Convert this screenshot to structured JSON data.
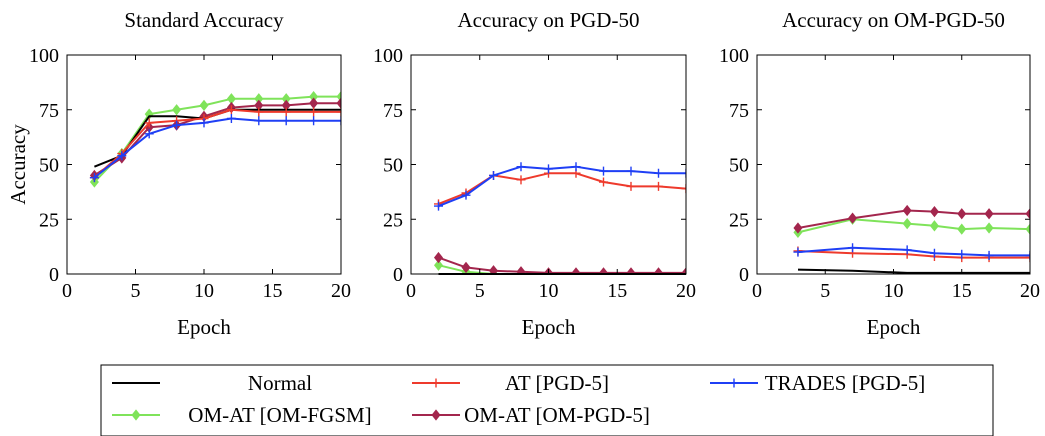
{
  "legend": {
    "placement": "bottom",
    "entries": [
      {
        "name": "Normal",
        "color": "#000000",
        "marker": "none"
      },
      {
        "name": "AT [PGD-5]",
        "color": "#ee3a2c",
        "marker": "plus"
      },
      {
        "name": "TRADES [PGD-5]",
        "color": "#1f3ff5",
        "marker": "plus"
      },
      {
        "name": "OM-AT [OM-FGSM]",
        "color": "#7fe35a",
        "marker": "diamond"
      },
      {
        "name": "OM-AT [OM-PGD-5]",
        "color": "#a3264d",
        "marker": "diamond"
      }
    ]
  },
  "chart_data": [
    {
      "type": "line",
      "title": "Standard Accuracy",
      "xlabel": "Epoch",
      "ylabel": "Accuracy",
      "xlim": [
        0,
        20
      ],
      "ylim": [
        0,
        100
      ],
      "xticks": [
        0,
        5,
        10,
        15,
        20
      ],
      "yticks": [
        0,
        25,
        50,
        75,
        100
      ],
      "grid": false,
      "series": [
        {
          "name": "Normal",
          "x": [
            2,
            4,
            6,
            8,
            10,
            12,
            14,
            16,
            18,
            20
          ],
          "y": [
            49,
            54,
            72,
            72,
            71,
            75,
            75,
            75,
            75,
            75
          ]
        },
        {
          "name": "AT [PGD-5]",
          "x": [
            2,
            4,
            6,
            8,
            10,
            12,
            14,
            16,
            18,
            20
          ],
          "y": [
            44,
            55,
            69,
            70,
            71,
            75,
            74,
            74,
            74,
            74
          ]
        },
        {
          "name": "TRADES [PGD-5]",
          "x": [
            2,
            4,
            6,
            8,
            10,
            12,
            14,
            16,
            18,
            20
          ],
          "y": [
            44,
            54,
            64,
            68,
            69,
            71,
            70,
            70,
            70,
            70
          ]
        },
        {
          "name": "OM-AT [OM-FGSM]",
          "x": [
            2,
            4,
            6,
            8,
            10,
            12,
            14,
            16,
            18,
            20
          ],
          "y": [
            42,
            55,
            73,
            75,
            77,
            80,
            80,
            80,
            81,
            81
          ]
        },
        {
          "name": "OM-AT [OM-PGD-5]",
          "x": [
            2,
            4,
            6,
            8,
            10,
            12,
            14,
            16,
            18,
            20
          ],
          "y": [
            45,
            53,
            67,
            68,
            72,
            76,
            77,
            77,
            78,
            78
          ]
        }
      ]
    },
    {
      "type": "line",
      "title": "Accuracy on PGD-50",
      "xlabel": "Epoch",
      "ylabel": "",
      "xlim": [
        0,
        20
      ],
      "ylim": [
        0,
        100
      ],
      "xticks": [
        0,
        5,
        10,
        15,
        20
      ],
      "yticks": [
        0,
        25,
        50,
        75,
        100
      ],
      "grid": false,
      "series": [
        {
          "name": "Normal",
          "x": [
            2,
            4,
            6,
            8,
            10,
            12,
            14,
            16,
            18,
            20
          ],
          "y": [
            0,
            0,
            0,
            0,
            0,
            0,
            0,
            0,
            0,
            0
          ]
        },
        {
          "name": "AT [PGD-5]",
          "x": [
            2,
            4,
            6,
            8,
            10,
            12,
            14,
            16,
            18,
            20
          ],
          "y": [
            32,
            37,
            45,
            43,
            46,
            46,
            42,
            40,
            40,
            39
          ]
        },
        {
          "name": "TRADES [PGD-5]",
          "x": [
            2,
            4,
            6,
            8,
            10,
            12,
            14,
            16,
            18,
            20
          ],
          "y": [
            31,
            36,
            45,
            49,
            48,
            49,
            47,
            47,
            46,
            46
          ]
        },
        {
          "name": "OM-AT [OM-FGSM]",
          "x": [
            2,
            4,
            6,
            8,
            10,
            12,
            14,
            16,
            18,
            20
          ],
          "y": [
            4,
            1,
            0,
            0,
            0,
            0,
            0,
            0,
            0,
            0
          ]
        },
        {
          "name": "OM-AT [OM-PGD-5]",
          "x": [
            2,
            4,
            6,
            8,
            10,
            12,
            14,
            16,
            18,
            20
          ],
          "y": [
            7.5,
            3,
            1.5,
            1,
            0.5,
            0.5,
            0.5,
            0.5,
            0.5,
            0.5
          ]
        }
      ]
    },
    {
      "type": "line",
      "title": "Accuracy on OM-PGD-50",
      "xlabel": "Epoch",
      "ylabel": "",
      "xlim": [
        0,
        20
      ],
      "ylim": [
        0,
        100
      ],
      "xticks": [
        0,
        5,
        10,
        15,
        20
      ],
      "yticks": [
        0,
        25,
        50,
        75,
        100
      ],
      "grid": false,
      "series": [
        {
          "name": "Normal",
          "x": [
            3,
            7,
            11,
            13,
            15,
            17,
            20
          ],
          "y": [
            2,
            1.5,
            0.5,
            0.5,
            0.5,
            0.5,
            0.5
          ]
        },
        {
          "name": "AT [PGD-5]",
          "x": [
            3,
            7,
            11,
            13,
            15,
            17,
            20
          ],
          "y": [
            10.5,
            9.5,
            9,
            8,
            7.5,
            7.5,
            7.5
          ]
        },
        {
          "name": "TRADES [PGD-5]",
          "x": [
            3,
            7,
            11,
            13,
            15,
            17,
            20
          ],
          "y": [
            10,
            12,
            11,
            9.5,
            9,
            8.5,
            8.5
          ]
        },
        {
          "name": "OM-AT [OM-FGSM]",
          "x": [
            3,
            7,
            11,
            13,
            15,
            17,
            20
          ],
          "y": [
            19,
            25,
            23,
            22,
            20.5,
            21,
            20.5
          ]
        },
        {
          "name": "OM-AT [OM-PGD-5]",
          "x": [
            3,
            7,
            11,
            13,
            15,
            17,
            20
          ],
          "y": [
            21,
            25.5,
            29,
            28.5,
            27.5,
            27.5,
            27.5
          ]
        }
      ]
    }
  ]
}
